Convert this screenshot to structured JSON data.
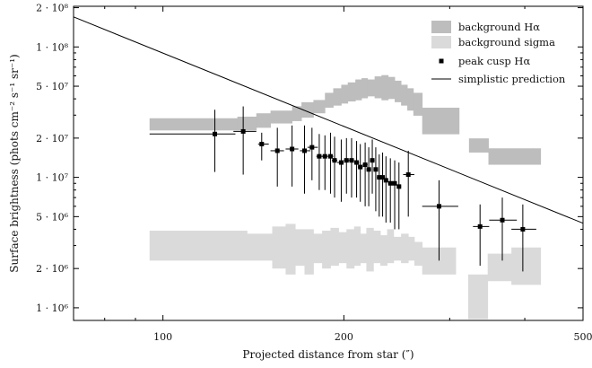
{
  "chart_data": {
    "type": "scatter",
    "title": "",
    "xlabel": "Projected distance from star (″)",
    "ylabel": "Surface brightness (phots cm⁻² s⁻¹ sr⁻¹)",
    "xscale": "log",
    "yscale": "log",
    "xlim": [
      71,
      500
    ],
    "ylim": [
      800000,
      205000000
    ],
    "xticks": [
      {
        "value": 100,
        "label": "100"
      },
      {
        "value": 200,
        "label": "200"
      },
      {
        "value": 500,
        "label": "500"
      }
    ],
    "yticks": [
      {
        "value": 1000000,
        "label": "1 · 10⁶"
      },
      {
        "value": 2000000,
        "label": "2 · 10⁶"
      },
      {
        "value": 5000000,
        "label": "5 · 10⁶"
      },
      {
        "value": 10000000,
        "label": "1 · 10⁷"
      },
      {
        "value": 20000000,
        "label": "2 · 10⁷"
      },
      {
        "value": 50000000,
        "label": "5 · 10⁷"
      },
      {
        "value": 100000000,
        "label": "1 · 10⁸"
      },
      {
        "value": 200000000,
        "label": "2 · 10⁸"
      }
    ],
    "grid": false,
    "legend_position": "top-right",
    "colors": {
      "background_halpha": "#bdbdbd",
      "background_sigma": "#dadada",
      "peak_cusp": "#000000",
      "prediction": "#000000"
    },
    "series": [
      {
        "name": "background Hα",
        "kind": "band",
        "bands": [
          [
            95,
            133,
            22900000,
            28400000
          ],
          [
            133,
            143,
            22900000,
            29200000
          ],
          [
            143,
            151,
            24000000,
            31000000
          ],
          [
            151,
            164,
            25900000,
            32500000
          ],
          [
            164,
            170,
            27000000,
            35100000
          ],
          [
            170,
            178,
            28700000,
            37700000
          ],
          [
            178,
            186,
            31000000,
            39200000
          ],
          [
            186,
            192,
            34200000,
            44500000
          ],
          [
            192,
            198,
            35500000,
            48200000
          ],
          [
            198,
            203,
            36800000,
            51300000
          ],
          [
            203,
            209,
            38200000,
            53500000
          ],
          [
            209,
            214,
            39000000,
            56300000
          ],
          [
            214,
            219,
            40400000,
            57600000
          ],
          [
            219,
            225,
            41800000,
            56300000
          ],
          [
            225,
            231,
            40400000,
            59500000
          ],
          [
            231,
            237,
            39000000,
            60800000
          ],
          [
            237,
            243,
            39900000,
            58900000
          ],
          [
            243,
            249,
            37700000,
            55100000
          ],
          [
            249,
            255,
            35500000,
            51300000
          ],
          [
            255,
            261,
            32500000,
            48200000
          ],
          [
            261,
            270,
            29700000,
            44500000
          ],
          [
            270,
            311,
            21400000,
            34200000
          ],
          [
            323,
            348,
            15500000,
            19900000
          ],
          [
            348,
            413,
            12500000,
            16700000
          ],
          [
            413,
            425,
            12500000,
            16700000
          ]
        ]
      },
      {
        "name": "background sigma",
        "kind": "band",
        "bands": [
          [
            95,
            138,
            2300000,
            3900000
          ],
          [
            138,
            152,
            2300000,
            3700000
          ],
          [
            152,
            160,
            2000000,
            4200000
          ],
          [
            160,
            166,
            1800000,
            4400000
          ],
          [
            166,
            172,
            2100000,
            4000000
          ],
          [
            172,
            178,
            1800000,
            4000000
          ],
          [
            178,
            184,
            2200000,
            3700000
          ],
          [
            184,
            190,
            2000000,
            3900000
          ],
          [
            190,
            196,
            2100000,
            4100000
          ],
          [
            196,
            202,
            2200000,
            3800000
          ],
          [
            202,
            208,
            2000000,
            4000000
          ],
          [
            208,
            213,
            2100000,
            4200000
          ],
          [
            213,
            218,
            2200000,
            3700000
          ],
          [
            218,
            224,
            1900000,
            4100000
          ],
          [
            224,
            230,
            2200000,
            3900000
          ],
          [
            230,
            236,
            2100000,
            3600000
          ],
          [
            236,
            242,
            2200000,
            4000000
          ],
          [
            242,
            249,
            2300000,
            3500000
          ],
          [
            249,
            256,
            2200000,
            3700000
          ],
          [
            256,
            262,
            2300000,
            3500000
          ],
          [
            262,
            270,
            2100000,
            3200000
          ],
          [
            270,
            307,
            1800000,
            2900000
          ],
          [
            322,
            347,
            820000,
            1800000
          ],
          [
            347,
            380,
            1600000,
            2600000
          ],
          [
            380,
            425,
            1500000,
            2900000
          ]
        ]
      },
      {
        "name": "peak cusp Hα",
        "kind": "errorbar",
        "points": [
          {
            "x": 122,
            "y": 21500000,
            "xlo": 95,
            "xhi": 132,
            "ylo": 11000000,
            "yhi": 33000000
          },
          {
            "x": 136,
            "y": 22500000,
            "xlo": 131,
            "xhi": 143,
            "ylo": 10500000,
            "yhi": 35000000
          },
          {
            "x": 146,
            "y": 18000000,
            "xlo": 144,
            "xhi": 150,
            "ylo": 13500000,
            "yhi": 22000000
          },
          {
            "x": 155,
            "y": 16000000,
            "xlo": 151,
            "xhi": 159,
            "ylo": 8500000,
            "yhi": 24000000
          },
          {
            "x": 164,
            "y": 16500000,
            "xlo": 160,
            "xhi": 168,
            "ylo": 8500000,
            "yhi": 25000000
          },
          {
            "x": 172,
            "y": 16000000,
            "xlo": 169,
            "xhi": 176,
            "ylo": 7500000,
            "yhi": 25000000
          },
          {
            "x": 177,
            "y": 17000000,
            "xlo": 174,
            "xhi": 181,
            "ylo": 9500000,
            "yhi": 24000000
          },
          {
            "x": 182,
            "y": 14500000,
            "xlo": 180,
            "xhi": 185,
            "ylo": 8000000,
            "yhi": 21500000
          },
          {
            "x": 186,
            "y": 14500000,
            "xlo": 184,
            "xhi": 188,
            "ylo": 8000000,
            "yhi": 21000000
          },
          {
            "x": 190,
            "y": 14500000,
            "xlo": 188,
            "xhi": 192,
            "ylo": 7500000,
            "yhi": 22000000
          },
          {
            "x": 193,
            "y": 13500000,
            "xlo": 191,
            "xhi": 195,
            "ylo": 7000000,
            "yhi": 20500000
          },
          {
            "x": 198,
            "y": 13000000,
            "xlo": 195,
            "xhi": 200,
            "ylo": 6500000,
            "yhi": 19500000
          },
          {
            "x": 202,
            "y": 13500000,
            "xlo": 200,
            "xhi": 204,
            "ylo": 7500000,
            "yhi": 20000000
          },
          {
            "x": 206,
            "y": 13500000,
            "xlo": 204,
            "xhi": 208,
            "ylo": 7000000,
            "yhi": 20000000
          },
          {
            "x": 210,
            "y": 13000000,
            "xlo": 208,
            "xhi": 212,
            "ylo": 7000000,
            "yhi": 19000000
          },
          {
            "x": 213,
            "y": 12000000,
            "xlo": 211,
            "xhi": 215,
            "ylo": 6500000,
            "yhi": 18000000
          },
          {
            "x": 217,
            "y": 12500000,
            "xlo": 215,
            "xhi": 219,
            "ylo": 6000000,
            "yhi": 18500000
          },
          {
            "x": 220,
            "y": 11500000,
            "xlo": 218,
            "xhi": 222,
            "ylo": 6000000,
            "yhi": 17000000
          },
          {
            "x": 223,
            "y": 13500000,
            "xlo": 221,
            "xhi": 225,
            "ylo": 7500000,
            "yhi": 19500000
          },
          {
            "x": 226,
            "y": 11500000,
            "xlo": 224,
            "xhi": 228,
            "ylo": 5500000,
            "yhi": 17000000
          },
          {
            "x": 229,
            "y": 10000000,
            "xlo": 227,
            "xhi": 231,
            "ylo": 5000000,
            "yhi": 15000000
          },
          {
            "x": 232,
            "y": 10000000,
            "xlo": 230,
            "xhi": 234,
            "ylo": 5000000,
            "yhi": 15500000
          },
          {
            "x": 235,
            "y": 9500000,
            "xlo": 233,
            "xhi": 237,
            "ylo": 4500000,
            "yhi": 14500000
          },
          {
            "x": 239,
            "y": 9000000,
            "xlo": 237,
            "xhi": 241,
            "ylo": 4500000,
            "yhi": 14000000
          },
          {
            "x": 243,
            "y": 9000000,
            "xlo": 241,
            "xhi": 245,
            "ylo": 4000000,
            "yhi": 13500000
          },
          {
            "x": 247,
            "y": 8500000,
            "xlo": 245,
            "xhi": 249,
            "ylo": 4000000,
            "yhi": 13000000
          },
          {
            "x": 256,
            "y": 10500000,
            "xlo": 251,
            "xhi": 262,
            "ylo": 5000000,
            "yhi": 16000000
          },
          {
            "x": 288,
            "y": 6000000,
            "xlo": 270,
            "xhi": 310,
            "ylo": 2300000,
            "yhi": 9500000
          },
          {
            "x": 337,
            "y": 4200000,
            "xlo": 328,
            "xhi": 349,
            "ylo": 2100000,
            "yhi": 6200000
          },
          {
            "x": 367,
            "y": 4700000,
            "xlo": 349,
            "xhi": 388,
            "ylo": 2300000,
            "yhi": 7000000
          },
          {
            "x": 397,
            "y": 4000000,
            "xlo": 380,
            "xhi": 418,
            "ylo": 1900000,
            "yhi": 6200000
          }
        ]
      },
      {
        "name": "simplistic prediction",
        "kind": "line",
        "x": [
          71,
          500
        ],
        "y": [
          170000000,
          4450000
        ]
      }
    ]
  }
}
